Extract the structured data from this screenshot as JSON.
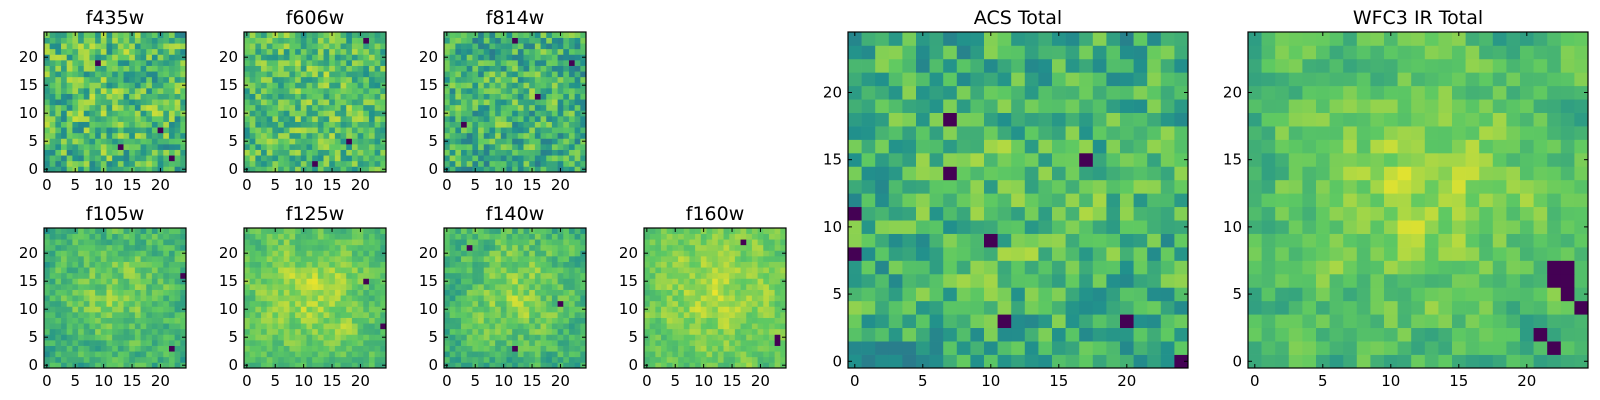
{
  "chart_data": {
    "type": "heatmap",
    "grid_size": 25,
    "colormap": "viridis",
    "colormap_stops": [
      "#440154",
      "#3b528b",
      "#21918c",
      "#5ec962",
      "#fde725"
    ],
    "panels": [
      {
        "id": "f435w",
        "title": "f435w",
        "xticks": [
          "0",
          "5",
          "10",
          "15",
          "20"
        ],
        "yticks": [
          "0",
          "5",
          "10",
          "15",
          "20"
        ],
        "smooth": 0.15,
        "center": 0.05,
        "mean": 0.66,
        "spread": 0.26,
        "seed": 11,
        "dark_cells": [
          [
            20,
            7
          ],
          [
            13,
            4
          ],
          [
            22,
            2
          ],
          [
            9,
            19
          ]
        ]
      },
      {
        "id": "f606w",
        "title": "f606w",
        "xticks": [
          "0",
          "5",
          "10",
          "15",
          "20"
        ],
        "yticks": [
          "0",
          "5",
          "10",
          "15",
          "20"
        ],
        "smooth": 0.2,
        "center": 0.05,
        "mean": 0.68,
        "spread": 0.24,
        "seed": 23,
        "dark_cells": [
          [
            12,
            1
          ],
          [
            21,
            23
          ],
          [
            18,
            5
          ]
        ]
      },
      {
        "id": "f814w",
        "title": "f814w",
        "xticks": [
          "0",
          "5",
          "10",
          "15",
          "20"
        ],
        "yticks": [
          "0",
          "5",
          "10",
          "15",
          "20"
        ],
        "smooth": 0.2,
        "center": 0.05,
        "mean": 0.62,
        "spread": 0.26,
        "seed": 37,
        "dark_cells": [
          [
            3,
            8
          ],
          [
            16,
            13
          ],
          [
            22,
            19
          ],
          [
            12,
            23
          ]
        ]
      },
      {
        "id": "f105w",
        "title": "f105w",
        "xticks": [
          "0",
          "5",
          "10",
          "15",
          "20"
        ],
        "yticks": [
          "0",
          "5",
          "10",
          "15",
          "20"
        ],
        "smooth": 0.45,
        "center": 0.18,
        "mean": 0.62,
        "spread": 0.2,
        "seed": 41,
        "dark_cells": [
          [
            24,
            16
          ],
          [
            22,
            3
          ]
        ]
      },
      {
        "id": "f125w",
        "title": "f125w",
        "xticks": [
          "0",
          "5",
          "10",
          "15",
          "20"
        ],
        "yticks": [
          "0",
          "5",
          "10",
          "15",
          "20"
        ],
        "smooth": 0.5,
        "center": 0.16,
        "mean": 0.7,
        "spread": 0.18,
        "seed": 53,
        "dark_cells": [
          [
            21,
            15
          ],
          [
            24,
            7
          ]
        ]
      },
      {
        "id": "f140w",
        "title": "f140w",
        "xticks": [
          "0",
          "5",
          "10",
          "15",
          "20"
        ],
        "yticks": [
          "0",
          "5",
          "10",
          "15",
          "20"
        ],
        "smooth": 0.45,
        "center": 0.18,
        "mean": 0.64,
        "spread": 0.2,
        "seed": 67,
        "dark_cells": [
          [
            20,
            11
          ],
          [
            12,
            3
          ],
          [
            4,
            21
          ]
        ]
      },
      {
        "id": "f160w",
        "title": "f160w",
        "xticks": [
          "0",
          "5",
          "10",
          "15",
          "20"
        ],
        "yticks": [
          "0",
          "5",
          "10",
          "15",
          "20"
        ],
        "smooth": 0.5,
        "center": 0.14,
        "mean": 0.74,
        "spread": 0.16,
        "seed": 79,
        "dark_cells": [
          [
            23,
            4
          ],
          [
            23,
            5
          ],
          [
            17,
            22
          ]
        ]
      },
      {
        "id": "acs-total",
        "title": "ACS Total",
        "xticks": [
          "0",
          "5",
          "10",
          "15",
          "20"
        ],
        "yticks": [
          "0",
          "5",
          "10",
          "15",
          "20"
        ],
        "smooth": 0.25,
        "center": 0.08,
        "mean": 0.62,
        "spread": 0.24,
        "seed": 97,
        "dark_cells": [
          [
            0,
            11
          ],
          [
            0,
            8
          ],
          [
            7,
            18
          ],
          [
            7,
            14
          ],
          [
            17,
            15
          ],
          [
            11,
            3
          ],
          [
            20,
            3
          ],
          [
            24,
            0
          ],
          [
            10,
            9
          ]
        ]
      },
      {
        "id": "wfc3-ir-total",
        "title": "WFC3 IR Total",
        "xticks": [
          "0",
          "5",
          "10",
          "15",
          "20"
        ],
        "yticks": [
          "0",
          "5",
          "10",
          "15",
          "20"
        ],
        "smooth": 0.55,
        "center": 0.18,
        "mean": 0.66,
        "spread": 0.22,
        "seed": 113,
        "dark_cells": [
          [
            23,
            5
          ],
          [
            23,
            6
          ],
          [
            23,
            7
          ],
          [
            22,
            6
          ],
          [
            22,
            7
          ],
          [
            21,
            2
          ],
          [
            22,
            1
          ],
          [
            24,
            4
          ]
        ]
      }
    ]
  }
}
